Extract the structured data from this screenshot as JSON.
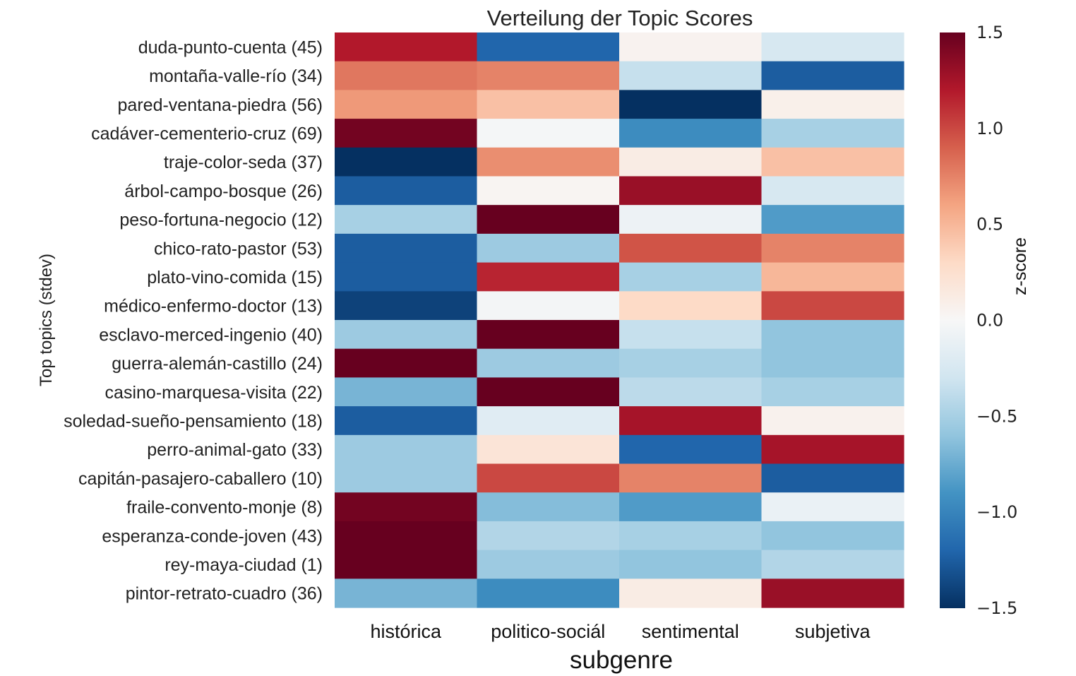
{
  "chart_data": {
    "type": "heatmap",
    "title": "Verteilung der Topic Scores",
    "xlabel": "subgenre",
    "ylabel": "Top topics (stdev)",
    "colorbar_label": "z-score",
    "colormap": "RdBu_r",
    "vmin": -1.5,
    "vmax": 1.5,
    "colorbar_ticks": [
      "1.5",
      "1.0",
      "0.5",
      "0.0",
      "−0.5",
      "−1.0",
      "−1.5"
    ],
    "columns": [
      "histórica",
      "politico-sociál",
      "sentimental",
      "subjetiva"
    ],
    "rows": [
      "duda-punto-cuenta (45)",
      "montaña-valle-río (34)",
      "pared-ventana-piedra (56)",
      "cadáver-cementerio-cruz (69)",
      "traje-color-seda (37)",
      "árbol-campo-bosque (26)",
      "peso-fortuna-negocio (12)",
      "chico-rato-pastor (53)",
      "plato-vino-comida (15)",
      "médico-enfermo-doctor (13)",
      "esclavo-merced-ingenio (40)",
      "guerra-alemán-castillo (24)",
      "casino-marquesa-visita (22)",
      "soledad-sueño-pensamiento (18)",
      "perro-animal-gato (33)",
      "capitán-pasajero-caballero (10)",
      "fraile-convento-monje (8)",
      "esperanza-conde-joven (43)",
      "rey-maya-ciudad (1)",
      "pintor-retrato-cuadro (36)"
    ],
    "values": [
      [
        1.2,
        -1.2,
        0.05,
        -0.25
      ],
      [
        0.8,
        0.75,
        -0.35,
        -1.25
      ],
      [
        0.65,
        0.45,
        -1.5,
        0.08
      ],
      [
        1.45,
        -0.02,
        -0.95,
        -0.5
      ],
      [
        -1.5,
        0.7,
        0.12,
        0.45
      ],
      [
        -1.25,
        0.03,
        1.3,
        -0.25
      ],
      [
        -0.5,
        1.5,
        -0.08,
        -0.85
      ],
      [
        -1.25,
        -0.55,
        0.95,
        0.75
      ],
      [
        -1.25,
        1.15,
        -0.5,
        0.5
      ],
      [
        -1.4,
        -0.03,
        0.3,
        1.0
      ],
      [
        -0.55,
        1.5,
        -0.35,
        -0.6
      ],
      [
        1.5,
        -0.55,
        -0.5,
        -0.6
      ],
      [
        -0.7,
        1.5,
        -0.4,
        -0.5
      ],
      [
        -1.25,
        -0.18,
        1.25,
        0.06
      ],
      [
        -0.55,
        0.2,
        -1.2,
        1.25
      ],
      [
        -0.55,
        1.0,
        0.75,
        -1.25
      ],
      [
        1.45,
        -0.65,
        -0.85,
        -0.1
      ],
      [
        1.5,
        -0.45,
        -0.5,
        -0.6
      ],
      [
        1.5,
        -0.55,
        -0.6,
        -0.45
      ],
      [
        -0.7,
        -0.95,
        0.12,
        1.3
      ]
    ]
  }
}
